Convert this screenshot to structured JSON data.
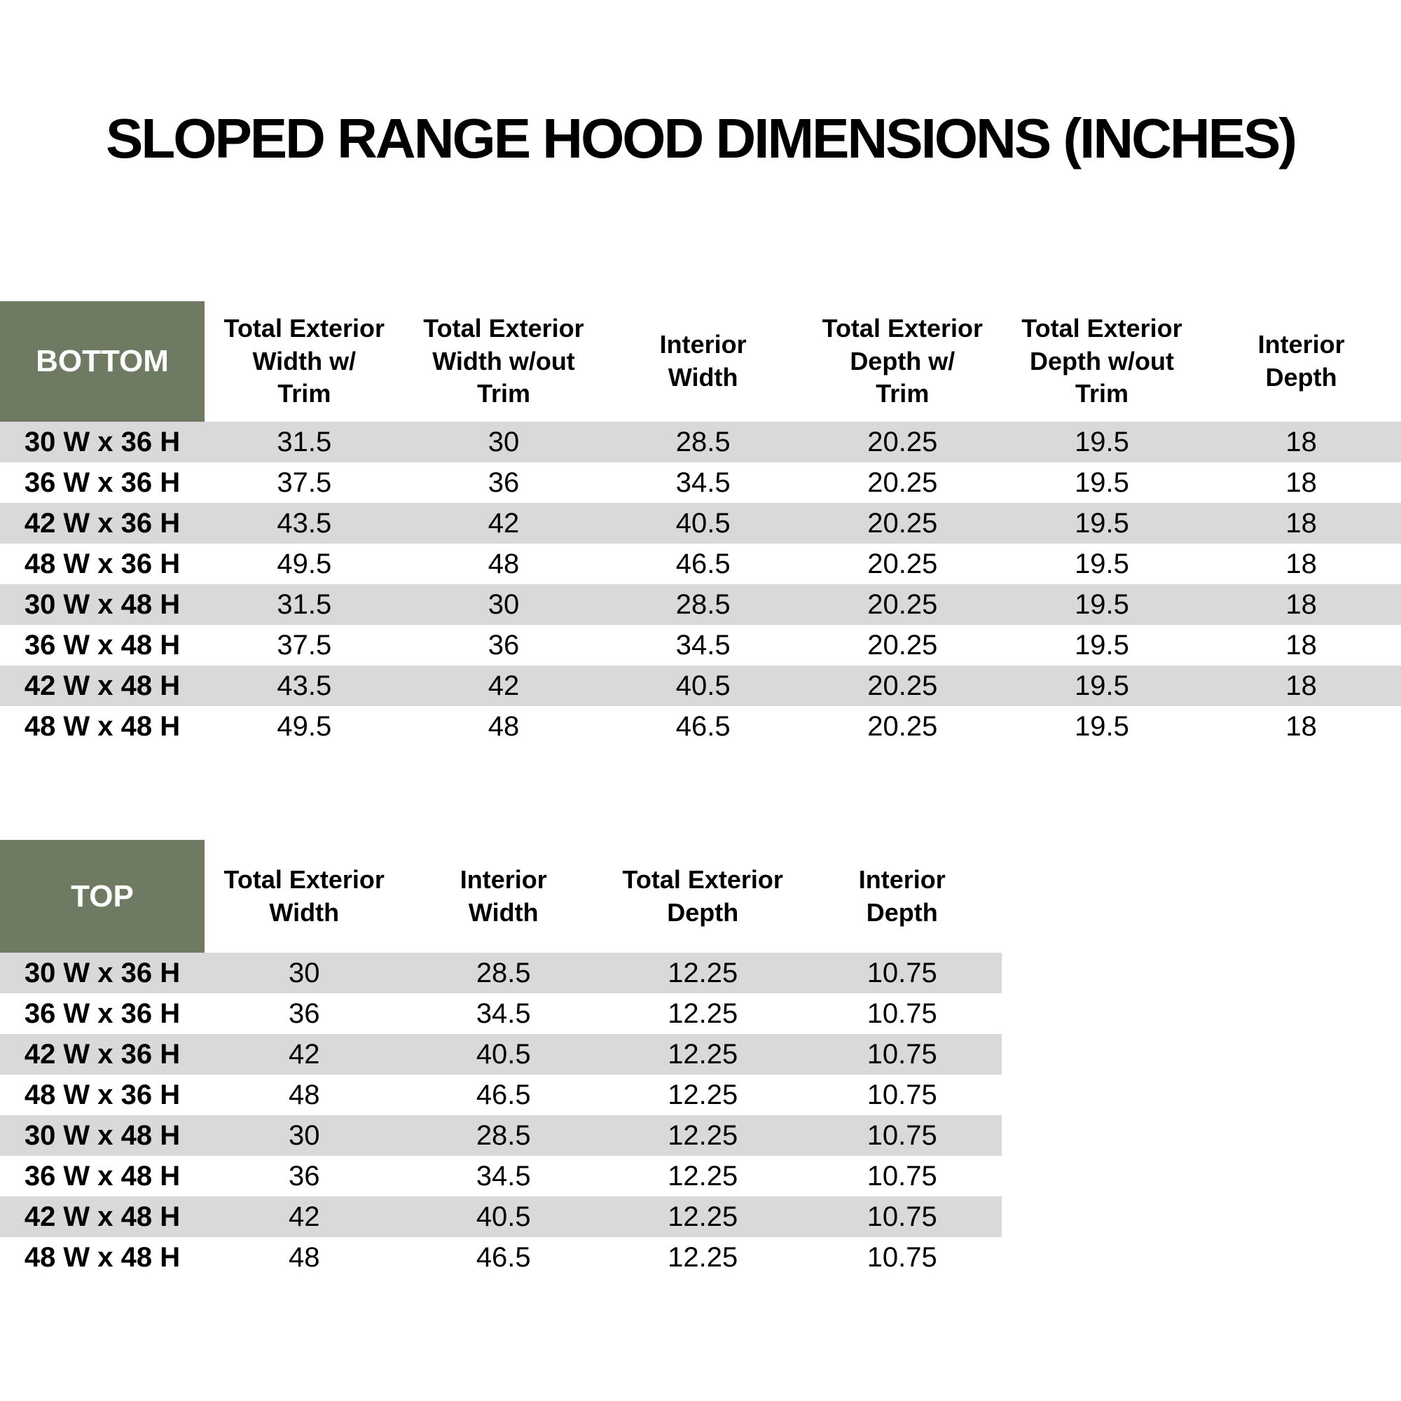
{
  "page": {
    "title": "SLOPED RANGE HOOD DIMENSIONS (INCHES)"
  },
  "colors": {
    "header_olive": "#6F7A62",
    "stripe_gray": "#D9D9D9",
    "corner_text": "#FFFFFF",
    "body_text": "#000000"
  },
  "chart_data": [
    {
      "type": "table",
      "title": "BOTTOM",
      "corner_label": "BOTTOM",
      "columns": [
        "Total Exterior\nWidth w/\nTrim",
        "Total Exterior\nWidth w/out\nTrim",
        "Interior\nWidth",
        "Total Exterior\nDepth w/\nTrim",
        "Total Exterior\nDepth w/out\nTrim",
        "Interior\nDepth"
      ],
      "rows": [
        {
          "label": "30 W x 36 H",
          "values": [
            "31.5",
            "30",
            "28.5",
            "20.25",
            "19.5",
            "18"
          ]
        },
        {
          "label": "36 W x 36 H",
          "values": [
            "37.5",
            "36",
            "34.5",
            "20.25",
            "19.5",
            "18"
          ]
        },
        {
          "label": "42 W x 36 H",
          "values": [
            "43.5",
            "42",
            "40.5",
            "20.25",
            "19.5",
            "18"
          ]
        },
        {
          "label": "48 W x 36 H",
          "values": [
            "49.5",
            "48",
            "46.5",
            "20.25",
            "19.5",
            "18"
          ]
        },
        {
          "label": "30 W x 48 H",
          "values": [
            "31.5",
            "30",
            "28.5",
            "20.25",
            "19.5",
            "18"
          ]
        },
        {
          "label": "36 W x 48 H",
          "values": [
            "37.5",
            "36",
            "34.5",
            "20.25",
            "19.5",
            "18"
          ]
        },
        {
          "label": "42 W x 48 H",
          "values": [
            "43.5",
            "42",
            "40.5",
            "20.25",
            "19.5",
            "18"
          ]
        },
        {
          "label": "48 W x 48 H",
          "values": [
            "49.5",
            "48",
            "46.5",
            "20.25",
            "19.5",
            "18"
          ]
        }
      ]
    },
    {
      "type": "table",
      "title": "TOP",
      "corner_label": "TOP",
      "columns": [
        "Total Exterior\nWidth",
        "Interior\nWidth",
        "Total Exterior\nDepth",
        "Interior\nDepth"
      ],
      "rows": [
        {
          "label": "30 W x 36 H",
          "values": [
            "30",
            "28.5",
            "12.25",
            "10.75"
          ]
        },
        {
          "label": "36 W x 36 H",
          "values": [
            "36",
            "34.5",
            "12.25",
            "10.75"
          ]
        },
        {
          "label": "42 W x 36 H",
          "values": [
            "42",
            "40.5",
            "12.25",
            "10.75"
          ]
        },
        {
          "label": "48 W x 36 H",
          "values": [
            "48",
            "46.5",
            "12.25",
            "10.75"
          ]
        },
        {
          "label": "30 W x 48 H",
          "values": [
            "30",
            "28.5",
            "12.25",
            "10.75"
          ]
        },
        {
          "label": "36 W x 48 H",
          "values": [
            "36",
            "34.5",
            "12.25",
            "10.75"
          ]
        },
        {
          "label": "42 W x 48 H",
          "values": [
            "42",
            "40.5",
            "12.25",
            "10.75"
          ]
        },
        {
          "label": "48 W x 48 H",
          "values": [
            "48",
            "46.5",
            "12.25",
            "10.75"
          ]
        }
      ]
    }
  ]
}
